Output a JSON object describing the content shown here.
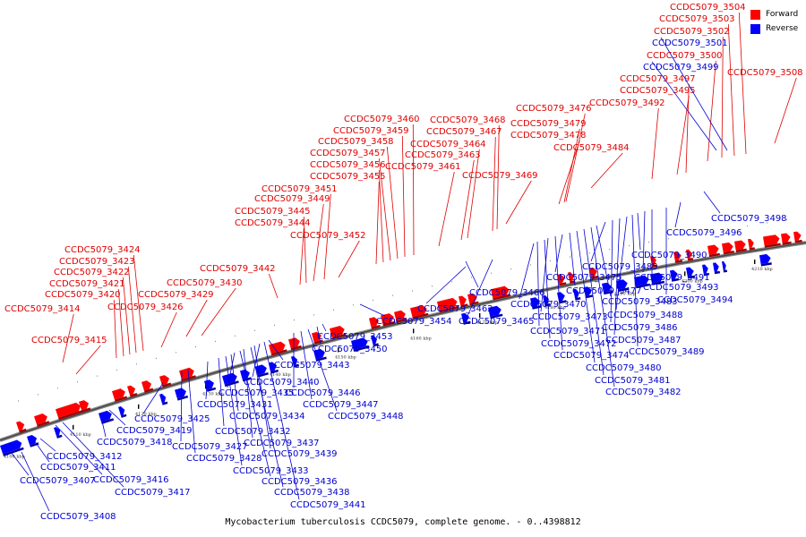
{
  "caption": "Mycobacterium tuberculosis CCDC5079, complete genome. - 0..4398812",
  "legend": [
    {
      "name": "forward",
      "label": "Forward",
      "color": "#ff0000"
    },
    {
      "name": "reverse",
      "label": "Reverse",
      "color": "#0000ff"
    }
  ],
  "ticks": [
    "4100 kbp",
    "4110 kbp",
    "4120 kbp",
    "4130 kbp",
    "4140 kbp",
    "4150 kbp",
    "4160 kbp",
    "4170 kbp",
    "4180 kbp",
    "4190 kbp",
    "4200 kbp",
    "4210 kbp"
  ],
  "forward_labels": [
    "CCDC5079_3414",
    "CCDC5079_3415",
    "CCDC5079_3420",
    "CCDC5079_3421",
    "CCDC5079_3422",
    "CCDC5079_3423",
    "CCDC5079_3424",
    "CCDC5079_3426",
    "CCDC5079_3429",
    "CCDC5079_3430",
    "CCDC5079_3442",
    "CCDC5079_3444",
    "CCDC5079_3445",
    "CCDC5079_3449",
    "CCDC5079_3451",
    "CCDC5079_3452",
    "CCDC5079_3455",
    "CCDC5079_3456",
    "CCDC5079_3457",
    "CCDC5079_3458",
    "CCDC5079_3459",
    "CCDC5079_3460",
    "CCDC5079_3461",
    "CCDC5079_3463",
    "CCDC5079_3464",
    "CCDC5079_3467",
    "CCDC5079_3468",
    "CCDC5079_3469",
    "CCDC5079_3476",
    "CCDC5079_3478",
    "CCDC5079_3479",
    "CCDC5079_3484",
    "CCDC5079_3492",
    "CCDC5079_3495",
    "CCDC5079_3497",
    "CCDC5079_3500",
    "CCDC5079_3502",
    "CCDC5079_3503",
    "CCDC5079_3504",
    "CCDC5079_3508"
  ],
  "reverse_labels": [
    "CCDC5079_3407",
    "CCDC5079_3408",
    "CCDC5079_3411",
    "CCDC5079_3412",
    "CCDC5079_3416",
    "CCDC5079_3417",
    "CCDC5079_3418",
    "CCDC5079_3419",
    "CCDC5079_3425",
    "CCDC5079_3427",
    "CCDC5079_3428",
    "CCDC5079_3431",
    "CCDC5079_3432",
    "CCDC5079_3433",
    "CCDC5079_3434",
    "CCDC5079_3435",
    "CCDC5079_3436",
    "CCDC5079_3437",
    "CCDC5079_3438",
    "CCDC5079_3439",
    "CCDC5079_3440",
    "CCDC5079_3441",
    "CCDC5079_3443",
    "CCDC5079_3446",
    "CCDC5079_3447",
    "CCDC5079_3448",
    "CCDC5079_3450",
    "CCDC5079_3453",
    "CCDC5079_3454",
    "CCDC5079_3462",
    "CCDC5079_3465",
    "CCDC5079_3466",
    "CCDC5079_3470",
    "CCDC5079_3471",
    "CCDC5079_3472",
    "CCDC5079_3473",
    "CCDC5079_3474",
    "CCDC5079_3475",
    "CCDC5079_3477",
    "CCDC5079_3480",
    "CCDC5079_3481",
    "CCDC5079_3482",
    "CCDC5079_3483",
    "CCDC5079_3485",
    "CCDC5079_3486",
    "CCDC5079_3487",
    "CCDC5079_3488",
    "CCDC5079_3489",
    "CCDC5079_3490",
    "CCDC5079_3491",
    "CCDC5079_3493",
    "CCDC5079_3494",
    "CCDC5079_3496",
    "CCDC5079_3498",
    "CCDC5079_3499",
    "CCDC5079_3501"
  ]
}
